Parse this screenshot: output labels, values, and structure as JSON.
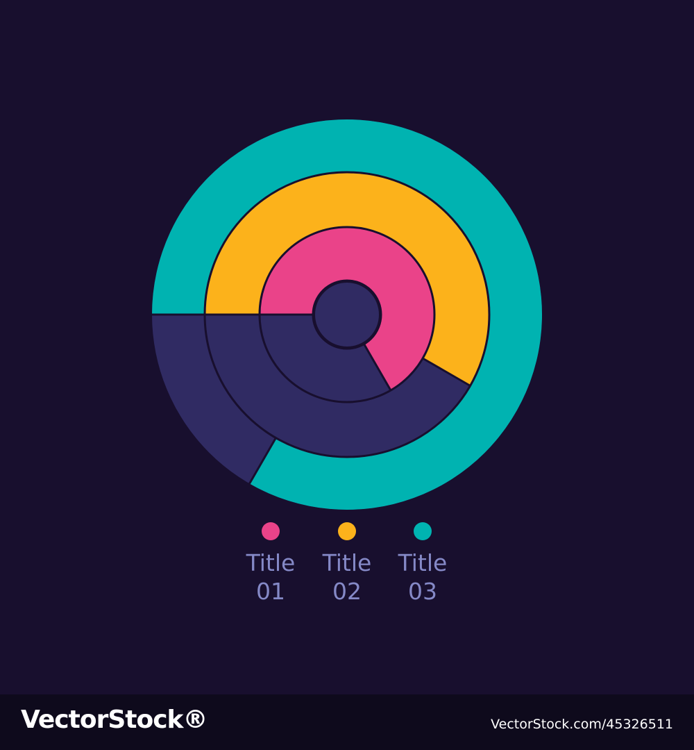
{
  "chart_data": {
    "type": "radial-bar",
    "rings": [
      "inner",
      "middle",
      "outer"
    ],
    "series": [
      {
        "name": "Title 01",
        "color": "#ea4389",
        "ring": "inner",
        "start_deg": 0,
        "sweep_deg": 240
      },
      {
        "name": "Title 02",
        "color": "#fcb21b",
        "ring": "middle",
        "start_deg": 0,
        "sweep_deg": 210
      },
      {
        "name": "Title 03",
        "color": "#00b3b1",
        "ring": "outer",
        "start_deg": 0,
        "sweep_deg": 300
      }
    ],
    "track_color": "#302b63",
    "background": "#180f2e",
    "legend_position": "bottom"
  },
  "legend": {
    "items": [
      {
        "line1": "Title",
        "line2": "01",
        "color": "#ea4389"
      },
      {
        "line1": "Title",
        "line2": "02",
        "color": "#fcb21b"
      },
      {
        "line1": "Title",
        "line2": "03",
        "color": "#00b3b1"
      }
    ]
  },
  "footer": {
    "logo_text": "VectorStock®",
    "image_id": "VectorStock.com/45326511"
  }
}
